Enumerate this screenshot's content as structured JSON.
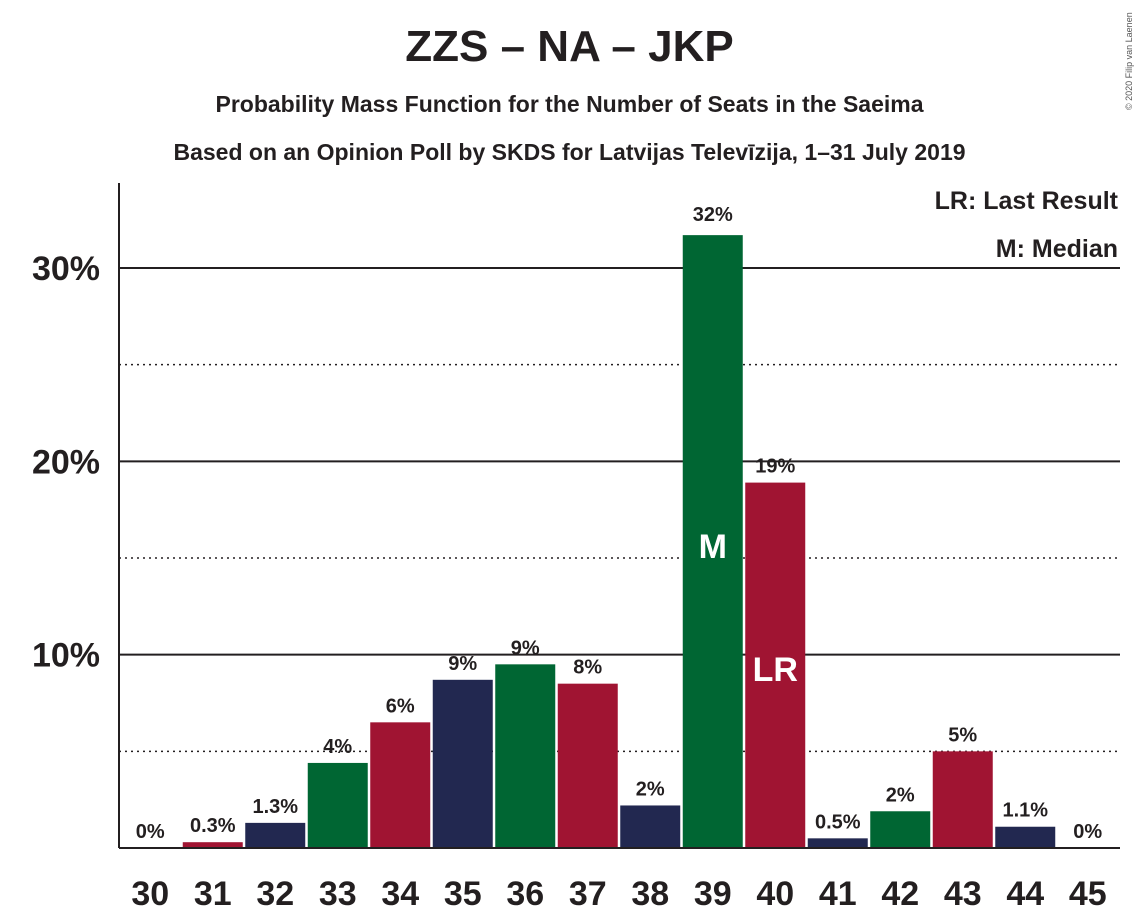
{
  "title": "ZZS – NA – JKP",
  "subtitle": "Probability Mass Function for the Number of Seats in the Saeima",
  "subtitle2": "Based on an Opinion Poll by SKDS for Latvijas Televīzija, 1–31 July 2019",
  "copyright": "© 2020 Filip van Laenen",
  "legend": {
    "lr": "LR: Last Result",
    "m": "M: Median"
  },
  "colors": {
    "zzs": "#006633",
    "na": "#a01432",
    "jkp": "#222850",
    "text": "#231f20"
  },
  "chart_data": {
    "type": "bar",
    "categories": [
      "30",
      "31",
      "32",
      "33",
      "34",
      "35",
      "36",
      "37",
      "38",
      "39",
      "40",
      "41",
      "42",
      "43",
      "44",
      "45"
    ],
    "values": [
      0,
      0.3,
      1.3,
      4.4,
      6.5,
      8.7,
      9.5,
      8.5,
      2.2,
      31.7,
      18.9,
      0.5,
      1.9,
      5.0,
      1.1,
      0
    ],
    "labels": [
      "0%",
      "0.3%",
      "1.3%",
      "4%",
      "6%",
      "9%",
      "9%",
      "8%",
      "2%",
      "32%",
      "19%",
      "0.5%",
      "2%",
      "5%",
      "1.1%",
      "0%"
    ],
    "bar_colors": [
      "#006633",
      "#a01432",
      "#222850",
      "#006633",
      "#a01432",
      "#222850",
      "#006633",
      "#a01432",
      "#222850",
      "#006633",
      "#a01432",
      "#222850",
      "#006633",
      "#a01432",
      "#222850",
      "#006633"
    ],
    "yticks": [
      10,
      20,
      30
    ],
    "ytick_labels": [
      "10%",
      "20%",
      "30%"
    ],
    "minor_gridlines": [
      5,
      15,
      25
    ],
    "ylim": [
      0,
      34.5
    ],
    "median_seat": "39",
    "median_label": "M",
    "last_result_seat": "40",
    "last_result_label": "LR",
    "legend_position": "top-right"
  }
}
